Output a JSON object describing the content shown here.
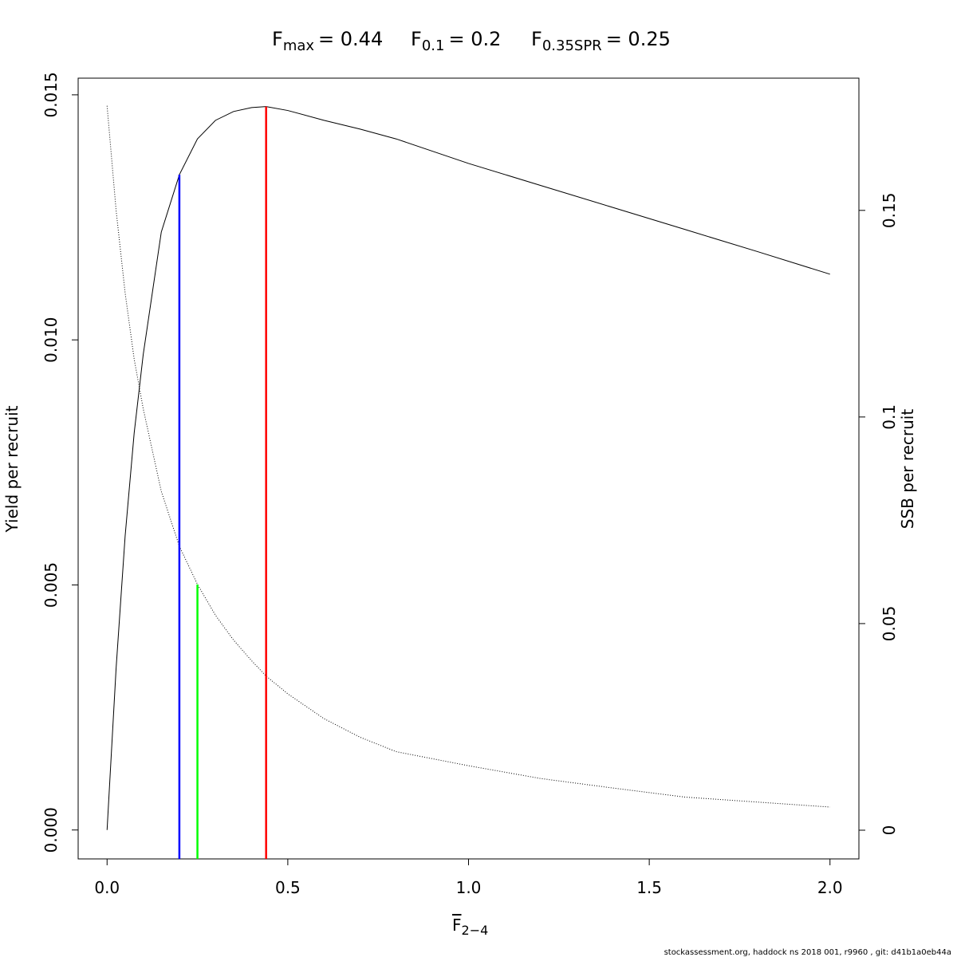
{
  "chart_data": {
    "type": "line",
    "title_parts": [
      {
        "base": "F",
        "sub": "max",
        "eq": "= 0.44"
      },
      {
        "base": "F",
        "sub": "0.1",
        "eq": "= 0.2"
      },
      {
        "base": "F",
        "sub": "0.35SPR",
        "eq": "= 0.25"
      }
    ],
    "x_label": {
      "base": "F",
      "sub": "2−4"
    },
    "y_label": "Yield per recruit",
    "y2_label": "SSB per recruit",
    "footer": "stockassessment.org, haddock  ns  2018  001, r9960 , git: d41b1a0eb44a",
    "x": [
      0,
      0.025,
      0.05,
      0.075,
      0.1,
      0.15,
      0.2,
      0.25,
      0.3,
      0.35,
      0.4,
      0.44,
      0.5,
      0.6,
      0.7,
      0.8,
      1.0,
      1.2,
      1.4,
      1.6,
      1.8,
      2.0
    ],
    "series": [
      {
        "color": "#000000",
        "style": "solid",
        "values": [
          0,
          0.0033,
          0.006,
          0.0081,
          0.0097,
          0.0122,
          0.01337,
          0.0141,
          0.01448,
          0.01466,
          0.01474,
          0.01476,
          0.01468,
          0.01448,
          0.0143,
          0.0141,
          0.0136,
          0.01315,
          0.0127,
          0.01225,
          0.0118,
          0.01134
        ]
      },
      {
        "color": "#000000",
        "style": "dotted",
        "axis": "y2",
        "values": [
          0.1753,
          0.15,
          0.13,
          0.114,
          0.102,
          0.082,
          0.0687,
          0.0595,
          0.052,
          0.046,
          0.041,
          0.0373,
          0.033,
          0.027,
          0.0225,
          0.019,
          0.0156,
          0.0125,
          0.0102,
          0.008,
          0.0068,
          0.0056
        ]
      }
    ],
    "ref_lines": [
      {
        "x": 0.2,
        "top": 0.01337,
        "color": "#0000ff"
      },
      {
        "x": 0.25,
        "top": 0.00501,
        "color": "#00ff00"
      },
      {
        "x": 0.44,
        "top": 0.01476,
        "color": "#ff0000"
      }
    ],
    "xlim": [
      -0.08,
      2.08
    ],
    "xticks": [
      {
        "value": 0,
        "label": "0.0"
      },
      0.5,
      {
        "value": 1,
        "label": "1.0"
      },
      1.5,
      {
        "value": 2,
        "label": "2.0"
      }
    ],
    "ylim": [
      -0.00059,
      0.01534
    ],
    "yticks": [
      {
        "value": 0,
        "label": "0.000"
      },
      {
        "value": 0.005,
        "label": "0.005"
      },
      {
        "value": 0.01,
        "label": "0.010"
      },
      {
        "value": 0.015,
        "label": "0.015"
      }
    ],
    "y2lim": [
      -0.00695,
      0.182
    ],
    "y2ticks": [
      0,
      0.05,
      0.1,
      0.15
    ]
  }
}
